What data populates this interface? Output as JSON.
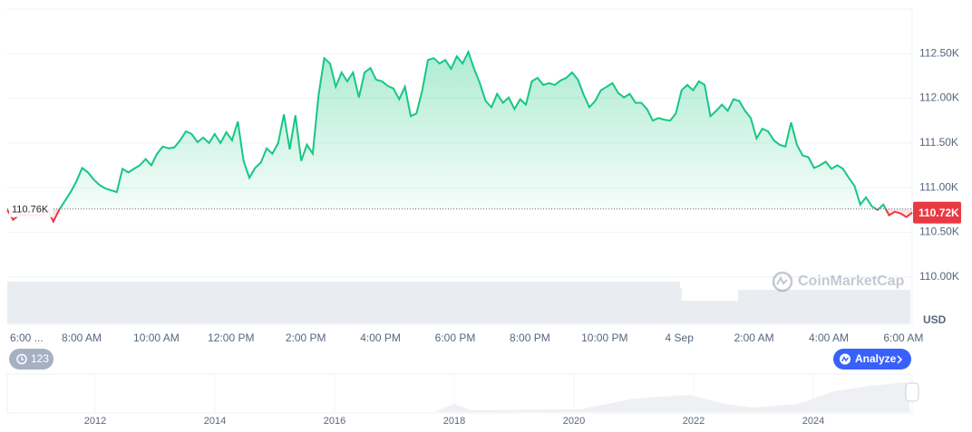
{
  "chart_data": {
    "type": "line",
    "x_labels": [
      "6:00 ...",
      "8:00 AM",
      "10:00 AM",
      "12:00 PM",
      "2:00 PM",
      "4:00 PM",
      "6:00 PM",
      "8:00 PM",
      "10:00 PM",
      "4 Sep",
      "2:00 AM",
      "4:00 AM",
      "6:00 AM"
    ],
    "ylim": [
      109500,
      113000
    ],
    "yticks": [
      {
        "value": 110000,
        "label": "110.00K"
      },
      {
        "value": 110500,
        "label": "110.50K"
      },
      {
        "value": 111000,
        "label": "111.00K"
      },
      {
        "value": 111500,
        "label": "111.50K"
      },
      {
        "value": 112000,
        "label": "112.00K"
      },
      {
        "value": 112500,
        "label": "112.50K"
      }
    ],
    "y_unit": "USD",
    "grid": true,
    "reference": {
      "value": 110760,
      "label": "110.76K"
    },
    "price_label": {
      "value": 110720,
      "label": "110.72K"
    },
    "up_color": "#16c784",
    "down_color": "#ea3943",
    "series": [
      {
        "values": [
          110750,
          110640,
          110690,
          110690,
          110690,
          110690,
          110690,
          110750,
          110620,
          110750,
          110850,
          110950,
          111070,
          111220,
          111170,
          111090,
          111030,
          110990,
          110970,
          110950,
          111210,
          111170,
          111210,
          111250,
          111320,
          111250,
          111380,
          111460,
          111440,
          111450,
          111530,
          111630,
          111600,
          111510,
          111560,
          111500,
          111600,
          111500,
          111620,
          111530,
          111740,
          111300,
          111110,
          111220,
          111280,
          111440,
          111380,
          111500,
          111820,
          111430,
          111810,
          111300,
          111480,
          111380,
          112030,
          112450,
          112390,
          112130,
          112290,
          112190,
          112290,
          112010,
          112290,
          112340,
          112210,
          112190,
          112140,
          112110,
          111990,
          112130,
          111800,
          111830,
          112090,
          112430,
          112450,
          112390,
          112430,
          112330,
          112470,
          112390,
          112520,
          112330,
          112170,
          111970,
          111900,
          112050,
          111950,
          112010,
          111880,
          111990,
          111930,
          112190,
          112230,
          112150,
          112170,
          112150,
          112200,
          112230,
          112290,
          112210,
          112040,
          111900,
          111970,
          112090,
          112130,
          112170,
          112060,
          112010,
          112050,
          111950,
          111950,
          111880,
          111750,
          111780,
          111760,
          111750,
          111830,
          112090,
          112150,
          112090,
          112190,
          112150,
          111800,
          111860,
          111930,
          111860,
          111990,
          111970,
          111860,
          111780,
          111550,
          111660,
          111630,
          111530,
          111480,
          111460,
          111730,
          111480,
          111360,
          111340,
          111220,
          111250,
          111290,
          111210,
          111250,
          111210,
          111110,
          111020,
          110810,
          110890,
          110790,
          110750,
          110810,
          110690,
          110730,
          110710,
          110670,
          110720
        ]
      }
    ],
    "watermark": "CoinMarketCap",
    "history_button": "123",
    "analyze_button": "Analyze",
    "navigator_years": [
      2012,
      2014,
      2016,
      2018,
      2020,
      2022,
      2024
    ]
  }
}
